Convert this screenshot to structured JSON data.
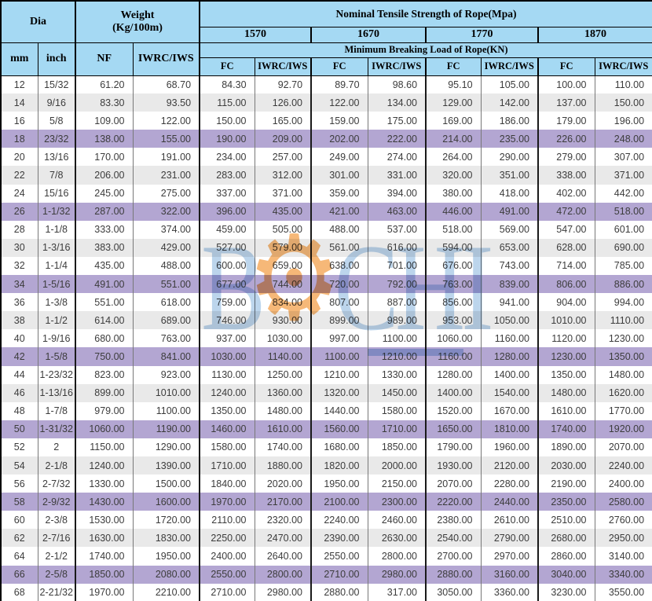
{
  "colors": {
    "header_bg": "#a5d9f3",
    "purple_row": "#b3a6d2",
    "gray_row": "#e9e9e9"
  },
  "header": {
    "dia": "Dia",
    "weight_line1": "Weight",
    "weight_line2": "(Kg/100m)",
    "nominal": "Nominal Tensile Strength of Rope(Mpa)",
    "grades": [
      "1570",
      "1670",
      "1770",
      "1870"
    ],
    "min_breaking": "Minimum Breaking Load of Rope(KN)",
    "mm": "mm",
    "inch": "inch",
    "nf": "NF",
    "iwrc_iws": "IWRC/IWS",
    "fc": "FC"
  },
  "watermark": {
    "prefix": "B",
    "gear_glyph": "⚙",
    "suffix": "CHI"
  },
  "table": {
    "col_keys": [
      "mm",
      "inch",
      "nf",
      "iwrc-weight",
      "fc-1570",
      "iwrc-1570",
      "fc-1670",
      "iwrc-1670",
      "fc-1770",
      "iwrc-1770",
      "fc-1870",
      "iwrc-1870"
    ],
    "rows": [
      [
        "12",
        "15/32",
        "61.20",
        "68.70",
        "84.30",
        "92.70",
        "89.70",
        "98.60",
        "95.10",
        "105.00",
        "100.00",
        "110.00"
      ],
      [
        "14",
        "9/16",
        "83.30",
        "93.50",
        "115.00",
        "126.00",
        "122.00",
        "134.00",
        "129.00",
        "142.00",
        "137.00",
        "150.00"
      ],
      [
        "16",
        "5/8",
        "109.00",
        "122.00",
        "150.00",
        "165.00",
        "159.00",
        "175.00",
        "169.00",
        "186.00",
        "179.00",
        "196.00"
      ],
      [
        "18",
        "23/32",
        "138.00",
        "155.00",
        "190.00",
        "209.00",
        "202.00",
        "222.00",
        "214.00",
        "235.00",
        "226.00",
        "248.00"
      ],
      [
        "20",
        "13/16",
        "170.00",
        "191.00",
        "234.00",
        "257.00",
        "249.00",
        "274.00",
        "264.00",
        "290.00",
        "279.00",
        "307.00"
      ],
      [
        "22",
        "7/8",
        "206.00",
        "231.00",
        "283.00",
        "312.00",
        "301.00",
        "331.00",
        "320.00",
        "351.00",
        "338.00",
        "371.00"
      ],
      [
        "24",
        "15/16",
        "245.00",
        "275.00",
        "337.00",
        "371.00",
        "359.00",
        "394.00",
        "380.00",
        "418.00",
        "402.00",
        "442.00"
      ],
      [
        "26",
        "1-1/32",
        "287.00",
        "322.00",
        "396.00",
        "435.00",
        "421.00",
        "463.00",
        "446.00",
        "491.00",
        "472.00",
        "518.00"
      ],
      [
        "28",
        "1-1/8",
        "333.00",
        "374.00",
        "459.00",
        "505.00",
        "488.00",
        "537.00",
        "518.00",
        "569.00",
        "547.00",
        "601.00"
      ],
      [
        "30",
        "1-3/16",
        "383.00",
        "429.00",
        "527.00",
        "579.00",
        "561.00",
        "616.00",
        "594.00",
        "653.00",
        "628.00",
        "690.00"
      ],
      [
        "32",
        "1-1/4",
        "435.00",
        "488.00",
        "600.00",
        "659.00",
        "638.00",
        "701.00",
        "676.00",
        "743.00",
        "714.00",
        "785.00"
      ],
      [
        "34",
        "1-5/16",
        "491.00",
        "551.00",
        "677.00",
        "744.00",
        "720.00",
        "792.00",
        "763.00",
        "839.00",
        "806.00",
        "886.00"
      ],
      [
        "36",
        "1-3/8",
        "551.00",
        "618.00",
        "759.00",
        "834.00",
        "807.00",
        "887.00",
        "856.00",
        "941.00",
        "904.00",
        "994.00"
      ],
      [
        "38",
        "1-1/2",
        "614.00",
        "689.00",
        "746.00",
        "930.00",
        "899.00",
        "989.00",
        "953.00",
        "1050.00",
        "1010.00",
        "1110.00"
      ],
      [
        "40",
        "1-9/16",
        "680.00",
        "763.00",
        "937.00",
        "1030.00",
        "997.00",
        "1100.00",
        "1060.00",
        "1160.00",
        "1120.00",
        "1230.00"
      ],
      [
        "42",
        "1-5/8",
        "750.00",
        "841.00",
        "1030.00",
        "1140.00",
        "1100.00",
        "1210.00",
        "1160.00",
        "1280.00",
        "1230.00",
        "1350.00"
      ],
      [
        "44",
        "1-23/32",
        "823.00",
        "923.00",
        "1130.00",
        "1250.00",
        "1210.00",
        "1330.00",
        "1280.00",
        "1400.00",
        "1350.00",
        "1480.00"
      ],
      [
        "46",
        "1-13/16",
        "899.00",
        "1010.00",
        "1240.00",
        "1360.00",
        "1320.00",
        "1450.00",
        "1400.00",
        "1540.00",
        "1480.00",
        "1620.00"
      ],
      [
        "48",
        "1-7/8",
        "979.00",
        "1100.00",
        "1350.00",
        "1480.00",
        "1440.00",
        "1580.00",
        "1520.00",
        "1670.00",
        "1610.00",
        "1770.00"
      ],
      [
        "50",
        "1-31/32",
        "1060.00",
        "1190.00",
        "1460.00",
        "1610.00",
        "1560.00",
        "1710.00",
        "1650.00",
        "1810.00",
        "1740.00",
        "1920.00"
      ],
      [
        "52",
        "2",
        "1150.00",
        "1290.00",
        "1580.00",
        "1740.00",
        "1680.00",
        "1850.00",
        "1790.00",
        "1960.00",
        "1890.00",
        "2070.00"
      ],
      [
        "54",
        "2-1/8",
        "1240.00",
        "1390.00",
        "1710.00",
        "1880.00",
        "1820.00",
        "2000.00",
        "1930.00",
        "2120.00",
        "2030.00",
        "2240.00"
      ],
      [
        "56",
        "2-7/32",
        "1330.00",
        "1500.00",
        "1840.00",
        "2020.00",
        "1950.00",
        "2150.00",
        "2070.00",
        "2280.00",
        "2190.00",
        "2400.00"
      ],
      [
        "58",
        "2-9/32",
        "1430.00",
        "1600.00",
        "1970.00",
        "2170.00",
        "2100.00",
        "2300.00",
        "2220.00",
        "2440.00",
        "2350.00",
        "2580.00"
      ],
      [
        "60",
        "2-3/8",
        "1530.00",
        "1720.00",
        "2110.00",
        "2320.00",
        "2240.00",
        "2460.00",
        "2380.00",
        "2610.00",
        "2510.00",
        "2760.00"
      ],
      [
        "62",
        "2-7/16",
        "1630.00",
        "1830.00",
        "2250.00",
        "2470.00",
        "2390.00",
        "2630.00",
        "2540.00",
        "2790.00",
        "2680.00",
        "2950.00"
      ],
      [
        "64",
        "2-1/2",
        "1740.00",
        "1950.00",
        "2400.00",
        "2640.00",
        "2550.00",
        "2800.00",
        "2700.00",
        "2970.00",
        "2860.00",
        "3140.00"
      ],
      [
        "66",
        "2-5/8",
        "1850.00",
        "2080.00",
        "2550.00",
        "2800.00",
        "2710.00",
        "2980.00",
        "2880.00",
        "3160.00",
        "3040.00",
        "3340.00"
      ],
      [
        "68",
        "2-21/32",
        "1970.00",
        "2210.00",
        "2710.00",
        "2980.00",
        "2880.00",
        "317.00",
        "3050.00",
        "3360.00",
        "3230.00",
        "3550.00"
      ]
    ]
  }
}
